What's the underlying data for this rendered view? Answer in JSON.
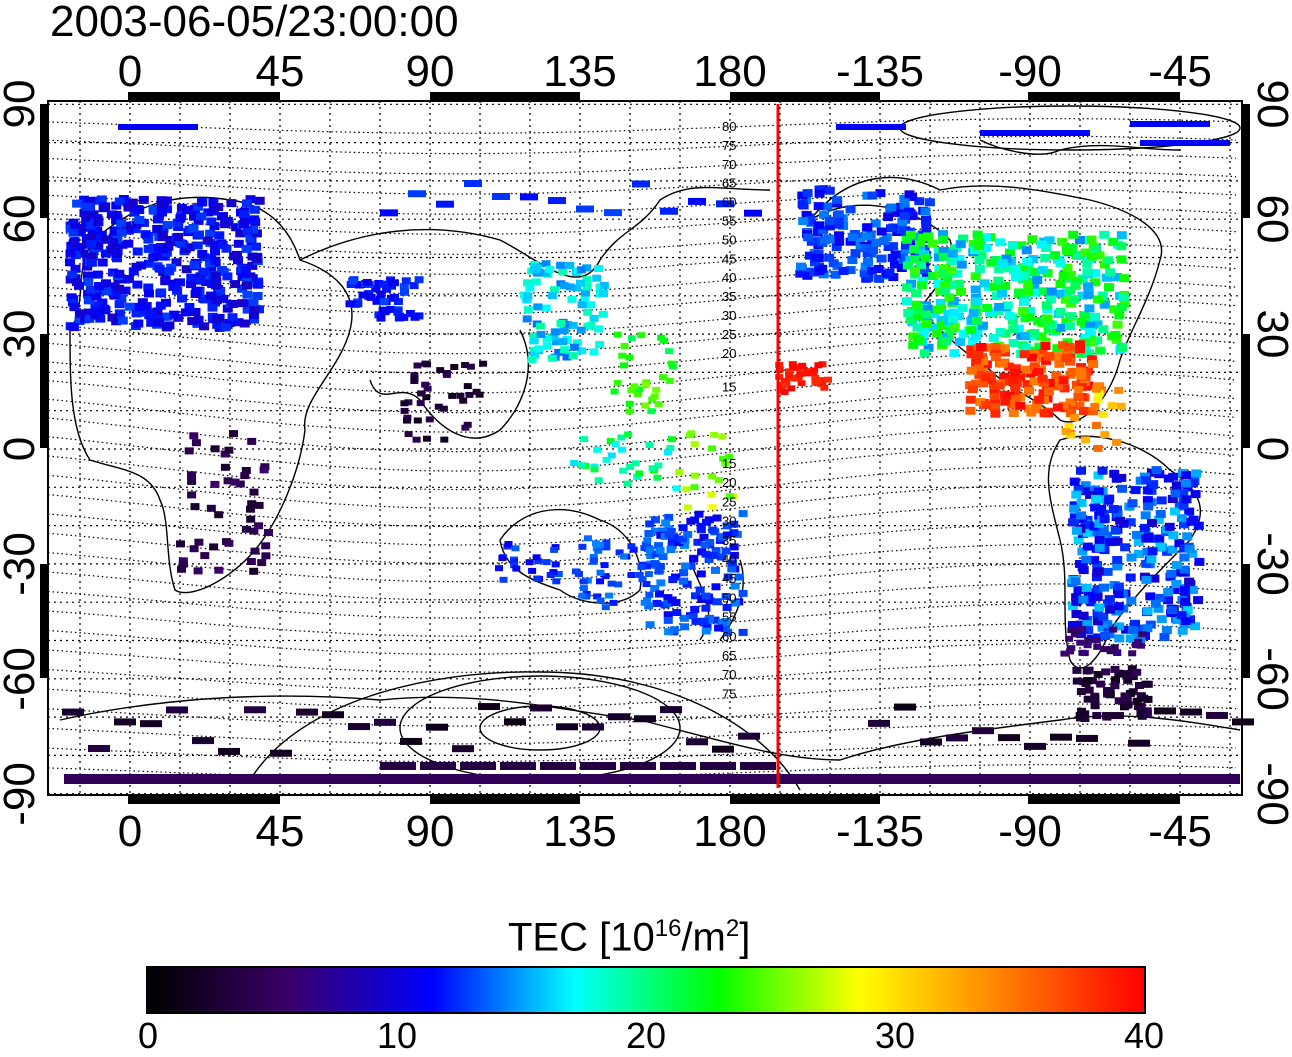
{
  "timestamp": "2003-06-05/23:00:00",
  "map": {
    "x_ticks": [
      "0",
      "45",
      "90",
      "135",
      "180",
      "-135",
      "-90",
      "-45"
    ],
    "y_ticks": [
      "90",
      "60",
      "30",
      "0",
      "-30",
      "-60",
      "-90"
    ],
    "magnetic_latitude_labels_north": [
      "80",
      "75",
      "70",
      "65",
      "60",
      "55",
      "50",
      "45",
      "40",
      "35",
      "30",
      "25",
      "20",
      "15"
    ],
    "magnetic_latitude_labels_south": [
      "15",
      "20",
      "25",
      "30",
      "35",
      "40",
      "45",
      "50",
      "55",
      "60",
      "65",
      "70",
      "75"
    ],
    "terminator_color": "#ff0000",
    "grid": "dotted"
  },
  "colorbar": {
    "label": "TEC  [10",
    "label_exp": "16",
    "label_unit": "/m",
    "label_unit_exp": "2",
    "label_close": "]",
    "ticks": [
      "0",
      "10",
      "20",
      "30",
      "40"
    ],
    "colors": [
      "#000000",
      "#3a006a",
      "#0000ff",
      "#00ffff",
      "#00ff00",
      "#ffff00",
      "#ff8000",
      "#ff0000"
    ]
  }
}
